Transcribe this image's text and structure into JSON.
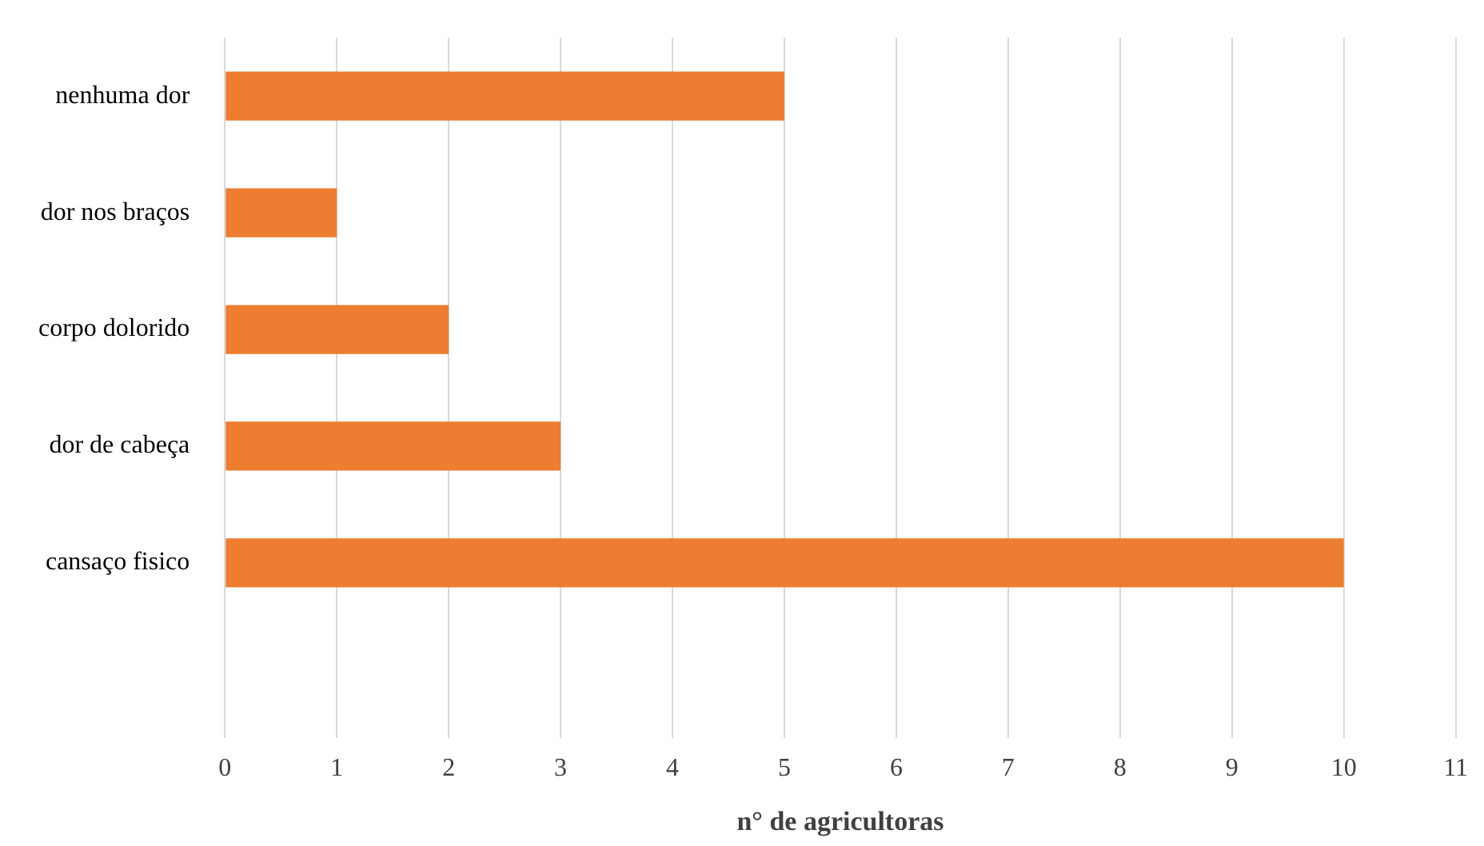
{
  "chart_data": {
    "type": "bar",
    "orientation": "horizontal",
    "xlabel": "n° de agricultoras",
    "categories": [
      "nenhuma dor",
      "dor nos braços",
      "corpo dolorido",
      "dor de cabeça",
      "cansaço fisico",
      null
    ],
    "values": [
      5,
      1,
      2,
      3,
      10,
      null
    ],
    "color": "#ed7d31",
    "xlim": [
      0,
      11
    ],
    "xticks": [
      0,
      1,
      2,
      3,
      4,
      5,
      6,
      7,
      8,
      9,
      10,
      11
    ],
    "grid": "x",
    "legend": false
  }
}
